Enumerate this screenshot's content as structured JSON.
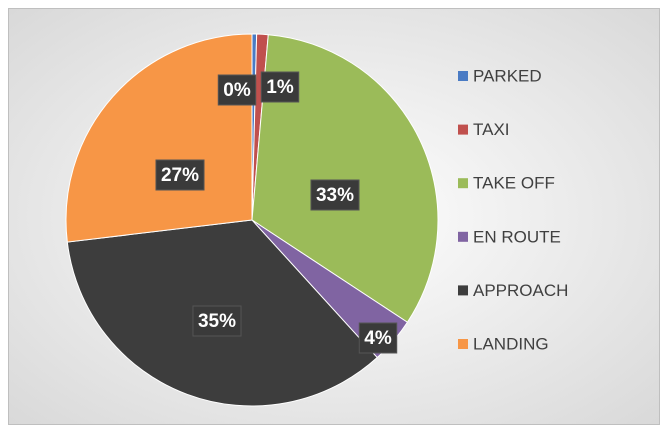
{
  "chart_data": {
    "type": "pie",
    "categories": [
      "PARKED",
      "TAXI",
      "TAKE OFF",
      "EN ROUTE",
      "APPROACH",
      "LANDING"
    ],
    "values": [
      0.4,
      1,
      33,
      4,
      35,
      27
    ],
    "value_labels": [
      "0%",
      "1%",
      "33%",
      "4%",
      "35%",
      "27%"
    ],
    "colors": [
      "#4a7bc4",
      "#c0504d",
      "#9bbb59",
      "#8064a2",
      "#3d3d3d",
      "#f79646"
    ],
    "legend": "right"
  }
}
